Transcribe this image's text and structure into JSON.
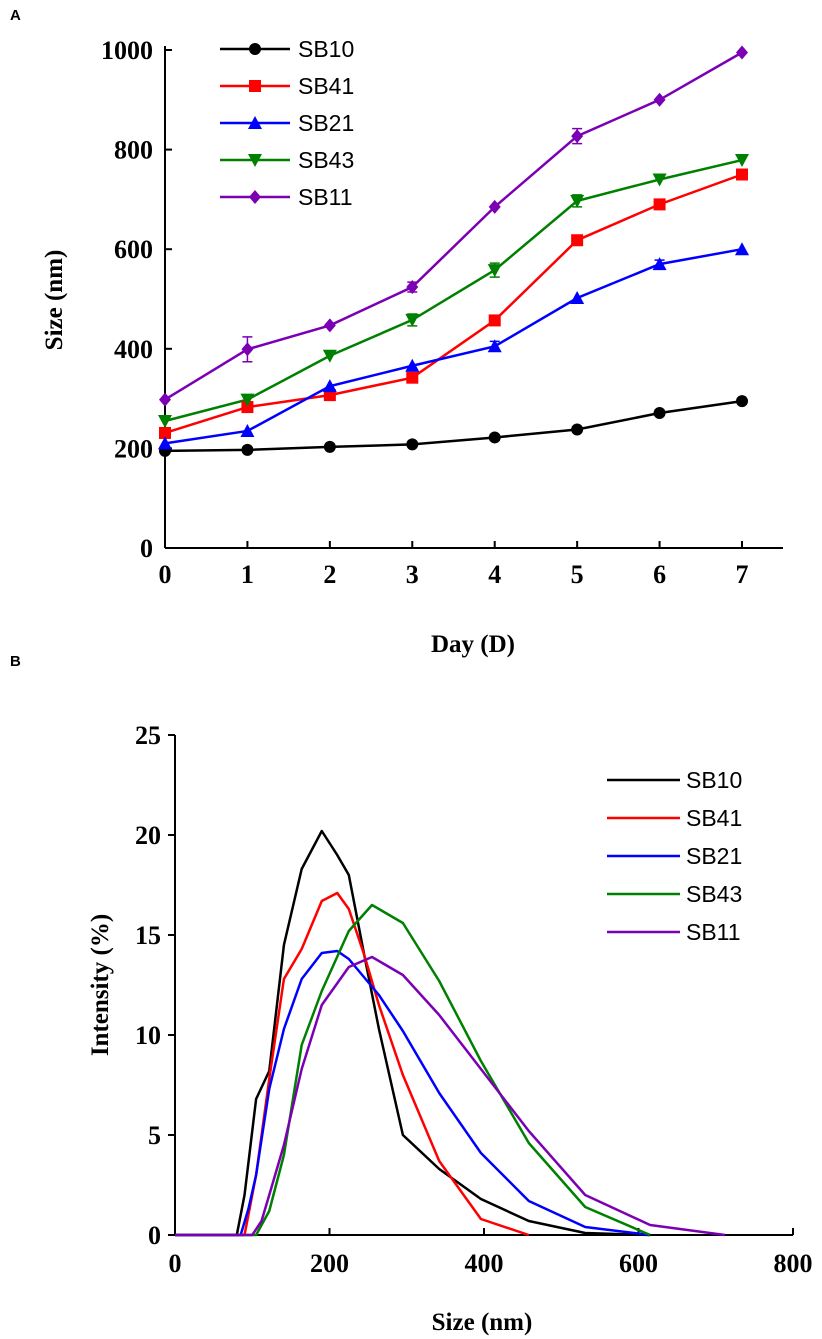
{
  "colors": {
    "SB10": "#000000",
    "SB41": "#ff0000",
    "SB21": "#0000ff",
    "SB43": "#008000",
    "SB11": "#7b00b4"
  },
  "chart_data": [
    {
      "panel": "A",
      "type": "line",
      "xlabel": "Day (D)",
      "ylabel": "Size (nm)",
      "xlim": [
        0,
        7
      ],
      "ylim": [
        0,
        1000
      ],
      "x": [
        0,
        1,
        2,
        3,
        4,
        5,
        6,
        7
      ],
      "xticks": [
        0,
        1,
        2,
        3,
        4,
        5,
        6,
        7
      ],
      "yticks": [
        0,
        200,
        400,
        600,
        800,
        1000
      ],
      "legend_position": "top-left",
      "series": [
        {
          "name": "SB10",
          "marker": "circle",
          "values": [
            195,
            197,
            203,
            208,
            222,
            238,
            271,
            295
          ],
          "errors": [
            0,
            0,
            0,
            0,
            0,
            0,
            0,
            0
          ]
        },
        {
          "name": "SB41",
          "marker": "square",
          "values": [
            231,
            283,
            307,
            342,
            457,
            618,
            690,
            750
          ],
          "errors": [
            0,
            0,
            0,
            0,
            0,
            0,
            0,
            0
          ]
        },
        {
          "name": "SB21",
          "marker": "triangle-up",
          "values": [
            210,
            235,
            325,
            366,
            405,
            502,
            570,
            600
          ],
          "errors": [
            0,
            0,
            0,
            0,
            10,
            0,
            8,
            0
          ]
        },
        {
          "name": "SB43",
          "marker": "triangle-down",
          "values": [
            255,
            298,
            386,
            458,
            558,
            697,
            740,
            779
          ],
          "errors": [
            0,
            0,
            0,
            12,
            14,
            12,
            0,
            0
          ]
        },
        {
          "name": "SB11",
          "marker": "diamond",
          "values": [
            298,
            399,
            447,
            524,
            685,
            827,
            900,
            995
          ],
          "errors": [
            0,
            25,
            0,
            10,
            0,
            15,
            0,
            0
          ]
        }
      ]
    },
    {
      "panel": "B",
      "type": "line",
      "xlabel": "Size (nm)",
      "ylabel": "Intensity (%)",
      "xlim": [
        0,
        800
      ],
      "ylim": [
        0,
        25
      ],
      "xticks": [
        0,
        200,
        400,
        600,
        800
      ],
      "yticks": [
        0,
        5,
        10,
        15,
        20,
        25
      ],
      "legend_position": "top-right",
      "series": [
        {
          "name": "SB10",
          "x": [
            0,
            80,
            90,
            105,
            122,
            141,
            164,
            190,
            210,
            225,
            245,
            264,
            295,
            342,
            396,
            458,
            531,
            615
          ],
          "values": [
            0,
            0,
            2,
            6.8,
            8.2,
            14.5,
            18.3,
            20.2,
            19,
            18,
            14,
            10.3,
            5,
            3.3,
            1.8,
            0.7,
            0.1,
            0
          ]
        },
        {
          "name": "SB41",
          "x": [
            0,
            90,
            105,
            122,
            141,
            164,
            190,
            210,
            225,
            245,
            264,
            295,
            342,
            396,
            458
          ],
          "values": [
            0,
            0,
            3,
            7.8,
            12.8,
            14.3,
            16.7,
            17.1,
            16.3,
            14,
            11.5,
            8,
            3.7,
            0.8,
            0
          ]
        },
        {
          "name": "SB21",
          "x": [
            0,
            85,
            95,
            105,
            122,
            141,
            164,
            190,
            210,
            225,
            264,
            295,
            342,
            396,
            458,
            531,
            615
          ],
          "values": [
            0,
            0,
            1.3,
            3,
            7.3,
            10.3,
            12.8,
            14.1,
            14.2,
            13.8,
            12,
            10.2,
            7.1,
            4.1,
            1.7,
            0.4,
            0
          ]
        },
        {
          "name": "SB43",
          "x": [
            0,
            105,
            122,
            141,
            164,
            190,
            225,
            255,
            295,
            342,
            396,
            458,
            531,
            615
          ],
          "values": [
            0,
            0,
            1.2,
            4,
            9.5,
            12.2,
            15.2,
            16.5,
            15.6,
            12.7,
            8.7,
            4.6,
            1.4,
            0
          ]
        },
        {
          "name": "SB11",
          "x": [
            0,
            100,
            112,
            122,
            141,
            164,
            190,
            225,
            255,
            295,
            342,
            396,
            458,
            531,
            615,
            712
          ],
          "values": [
            0,
            0,
            0.7,
            2,
            4.5,
            8.3,
            11.5,
            13.4,
            13.9,
            13,
            11,
            8.3,
            5.2,
            2,
            0.5,
            0
          ]
        }
      ]
    }
  ]
}
